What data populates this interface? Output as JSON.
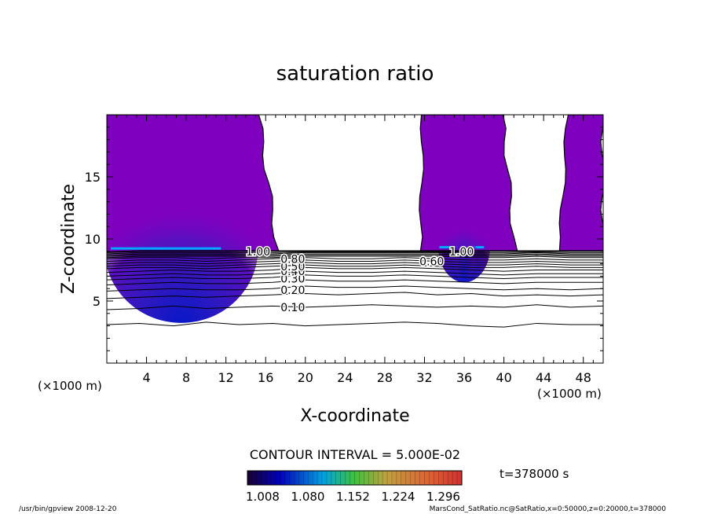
{
  "chart_data": {
    "type": "contour",
    "title": "saturation ratio",
    "xlabel": "X-coordinate",
    "ylabel": "Z-coordinate",
    "x_unit_label_left": "(×1000 m)",
    "x_unit_label_right": "(×1000 m)",
    "xlim": [
      0,
      50
    ],
    "ylim": [
      0,
      20
    ],
    "x_ticks": [
      4,
      8,
      12,
      16,
      20,
      24,
      28,
      32,
      36,
      40,
      44,
      48
    ],
    "y_ticks": [
      5,
      10,
      15
    ],
    "contour_interval_text": "CONTOUR INTERVAL = 5.000E-02",
    "contour_lines": [
      {
        "level": "0.05",
        "z": [
          3.1,
          3.2,
          3.0,
          3.3,
          3.1,
          3.2,
          3.0,
          3.1,
          3.2,
          3.3,
          3.2,
          3.0,
          2.9,
          3.2,
          3.1,
          3.1
        ]
      },
      {
        "level": "0.10",
        "z": [
          4.3,
          4.4,
          4.6,
          4.4,
          4.5,
          4.6,
          4.5,
          4.6,
          4.7,
          4.6,
          4.5,
          4.6,
          4.5,
          4.7,
          4.5,
          4.6
        ]
      },
      {
        "level": "0.15",
        "z": [
          5.2,
          5.3,
          5.4,
          5.3,
          5.4,
          5.5,
          5.6,
          5.5,
          5.6,
          5.7,
          5.5,
          5.6,
          5.4,
          5.5,
          5.4,
          5.5
        ]
      },
      {
        "level": "0.20",
        "z": [
          5.8,
          5.9,
          6.0,
          5.9,
          5.9,
          6.0,
          6.2,
          6.1,
          6.1,
          6.2,
          6.1,
          6.0,
          5.9,
          6.0,
          5.9,
          6.0
        ]
      },
      {
        "level": "0.25",
        "z": [
          6.3,
          6.4,
          6.5,
          6.4,
          6.4,
          6.5,
          6.7,
          6.6,
          6.6,
          6.7,
          6.6,
          6.5,
          6.4,
          6.5,
          6.5,
          6.5
        ]
      },
      {
        "level": "0.30",
        "z": [
          6.7,
          6.8,
          6.9,
          6.8,
          6.8,
          6.9,
          7.1,
          7.0,
          7.0,
          7.1,
          7.0,
          6.9,
          6.8,
          6.9,
          6.9,
          6.9
        ]
      },
      {
        "level": "0.35",
        "z": [
          7.0,
          7.1,
          7.2,
          7.1,
          7.1,
          7.2,
          7.4,
          7.3,
          7.3,
          7.4,
          7.3,
          7.2,
          7.1,
          7.2,
          7.2,
          7.2
        ]
      },
      {
        "level": "0.40",
        "z": [
          7.3,
          7.4,
          7.5,
          7.4,
          7.4,
          7.5,
          7.7,
          7.6,
          7.6,
          7.7,
          7.6,
          7.5,
          7.4,
          7.5,
          7.5,
          7.5
        ]
      },
      {
        "level": "0.45",
        "z": [
          7.6,
          7.7,
          7.7,
          7.6,
          7.7,
          7.8,
          7.9,
          7.8,
          7.8,
          7.9,
          7.8,
          7.7,
          7.7,
          7.8,
          7.7,
          7.7
        ]
      },
      {
        "level": "0.50",
        "z": [
          7.8,
          7.9,
          7.9,
          7.8,
          7.9,
          8.0,
          8.1,
          8.0,
          8.0,
          8.1,
          8.0,
          7.9,
          7.9,
          8.0,
          7.9,
          7.9
        ]
      },
      {
        "level": "0.55",
        "z": [
          8.0,
          8.1,
          8.1,
          8.0,
          8.1,
          8.2,
          8.3,
          8.2,
          8.2,
          8.3,
          8.2,
          8.1,
          8.1,
          8.2,
          8.1,
          8.1
        ]
      },
      {
        "level": "0.60",
        "z": [
          8.2,
          8.3,
          8.3,
          8.2,
          8.3,
          8.4,
          8.5,
          8.4,
          8.4,
          8.5,
          8.4,
          8.3,
          8.3,
          8.4,
          8.3,
          8.3
        ]
      },
      {
        "level": "0.65",
        "z": [
          8.4,
          8.5,
          8.5,
          8.4,
          8.5,
          8.5,
          8.6,
          8.6,
          8.6,
          8.6,
          8.6,
          8.5,
          8.5,
          8.6,
          8.5,
          8.5
        ]
      },
      {
        "level": "0.70",
        "z": [
          8.5,
          8.6,
          8.6,
          8.6,
          8.6,
          8.6,
          8.7,
          8.7,
          8.7,
          8.7,
          8.7,
          8.6,
          8.6,
          8.7,
          8.6,
          8.6
        ]
      },
      {
        "level": "0.75",
        "z": [
          8.6,
          8.7,
          8.7,
          8.7,
          8.7,
          8.7,
          8.8,
          8.8,
          8.8,
          8.8,
          8.8,
          8.7,
          8.7,
          8.8,
          8.7,
          8.7
        ]
      },
      {
        "level": "0.80",
        "z": [
          8.7,
          8.8,
          8.8,
          8.8,
          8.8,
          8.8,
          8.9,
          8.9,
          8.9,
          8.9,
          8.9,
          8.8,
          8.8,
          8.9,
          8.8,
          8.8
        ]
      },
      {
        "level": "0.85",
        "z": [
          8.8,
          8.9,
          8.9,
          8.9,
          8.9,
          8.9,
          8.95,
          8.95,
          8.95,
          8.95,
          8.95,
          8.9,
          8.9,
          8.95,
          8.9,
          8.9
        ]
      },
      {
        "level": "0.90",
        "z": [
          8.9,
          9.0,
          9.0,
          9.0,
          9.0,
          9.0,
          9.0,
          9.0,
          9.0,
          9.0,
          9.0,
          9.0,
          9.0,
          9.0,
          9.0,
          9.0
        ]
      },
      {
        "level": "0.95",
        "z": [
          8.95,
          9.05,
          9.05,
          9.05,
          9.05,
          9.05,
          9.05,
          9.05,
          9.05,
          9.05,
          9.05,
          9.05,
          9.05,
          9.05,
          9.05,
          9.05
        ]
      }
    ],
    "contour_x": [
      0,
      3.3,
      6.7,
      10,
      13.3,
      16.7,
      20,
      23.3,
      26.7,
      30,
      33.3,
      36.7,
      40,
      43.3,
      46.7,
      50
    ],
    "contour_labels": [
      {
        "text": "0.10",
        "x": 17.5,
        "z": 4.5
      },
      {
        "text": "0.20",
        "x": 17.5,
        "z": 5.9
      },
      {
        "text": "0.30",
        "x": 17.5,
        "z": 6.8
      },
      {
        "text": "0.40",
        "x": 17.5,
        "z": 7.4
      },
      {
        "text": "0.50",
        "x": 17.5,
        "z": 7.8
      },
      {
        "text": "0.80",
        "x": 17.5,
        "z": 8.4
      },
      {
        "text": "0.60",
        "x": 31.5,
        "z": 8.2
      },
      {
        "text": "1.00",
        "x": 14,
        "z": 9.0
      },
      {
        "text": "1.00",
        "x": 34.5,
        "z": 9.0
      }
    ],
    "supersaturated_regions": [
      {
        "boundary_x_top": [
          0,
          15.3
        ],
        "boundary_x_bottom": [
          0,
          17.2
        ]
      },
      {
        "boundary_x_top": [
          31.8,
          39.9
        ],
        "boundary_x_bottom": [
          31.6,
          41.1
        ]
      },
      {
        "boundary_x_top": [
          46.4,
          50
        ],
        "boundary_x_bottom": [
          45.6,
          50
        ]
      }
    ],
    "colorbar": {
      "tick_labels": [
        "1.008",
        "1.080",
        "1.152",
        "1.224",
        "1.296"
      ],
      "colors": [
        "#1a0030",
        "#0000c0",
        "#00a0e0",
        "#40c040",
        "#c0a040",
        "#e06030",
        "#d03030"
      ]
    },
    "colors": {
      "fill_low": "#8000c0",
      "fill_mid": "#5a10c0",
      "fill_core": "#1020c0",
      "fill_peak": "#00a8ff"
    }
  },
  "annotations": {
    "time": "t=378000 s",
    "footer_left": "/usr/bin/gpview  2008-12-20",
    "footer_right": "MarsCond_SatRatio.nc@SatRatio,x=0:50000,z=0:20000,t=378000"
  }
}
